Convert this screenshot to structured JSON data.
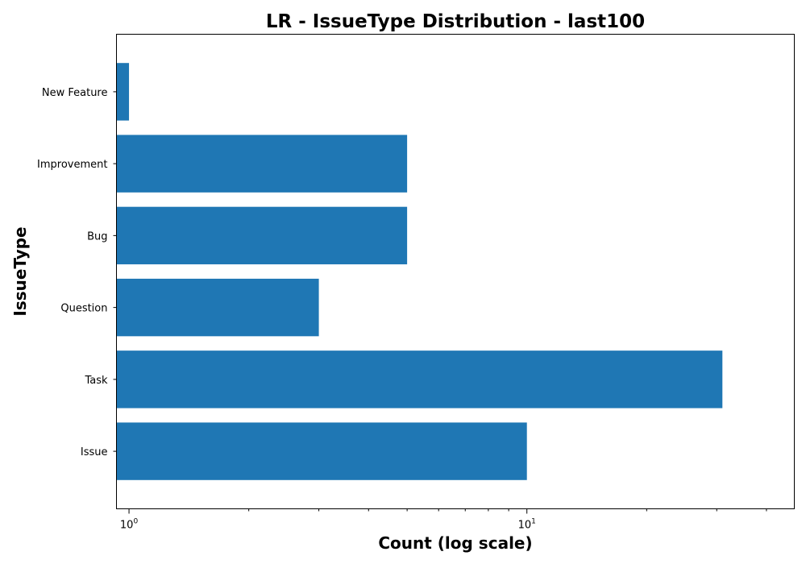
{
  "chart_data": {
    "type": "bar",
    "orientation": "horizontal",
    "title": "LR - IssueType Distribution - last100",
    "xlabel": "Count (log scale)",
    "ylabel": "IssueType",
    "x_scale": "log",
    "xlim": [
      0.93,
      47
    ],
    "categories": [
      "Issue",
      "Task",
      "Question",
      "Bug",
      "Improvement",
      "New Feature"
    ],
    "values": [
      10,
      31,
      3,
      5,
      5,
      1
    ],
    "x_major_ticks": [
      {
        "value": 1,
        "base": "10",
        "exp": "0"
      },
      {
        "value": 10,
        "base": "10",
        "exp": "1"
      }
    ],
    "x_minor_ticks": [
      2,
      3,
      4,
      5,
      6,
      7,
      8,
      9,
      20,
      30,
      40
    ],
    "colors": {
      "bar": "#1f77b4"
    },
    "grid": false,
    "legend": "none"
  }
}
